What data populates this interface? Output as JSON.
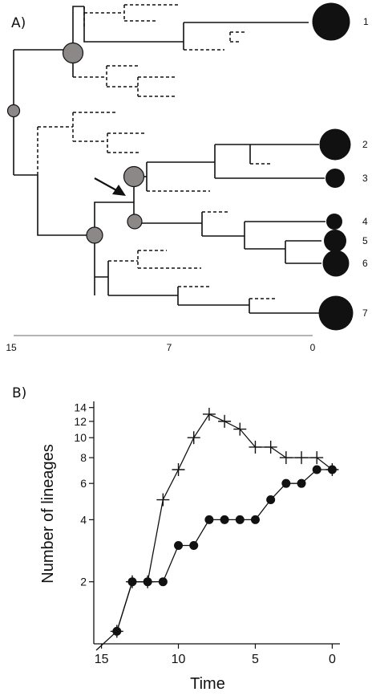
{
  "chart_data": [
    {
      "type": "tree",
      "panel_label": "A)",
      "x_ticks": [
        "15",
        "7",
        "0"
      ],
      "tip_labels": [
        "1",
        "2",
        "3",
        "4",
        "5",
        "6",
        "7"
      ],
      "colors": {
        "node": "#8c8888",
        "tip": "#111111",
        "line": "#111111"
      }
    },
    {
      "type": "line",
      "panel_label": "B)",
      "xlabel": "Time",
      "ylabel": "Number of lineages",
      "x_ticks": [
        15,
        10,
        5,
        0
      ],
      "y_ticks": [
        2,
        4,
        6,
        8,
        10,
        12,
        14
      ],
      "xlim": [
        15.5,
        -0.5
      ],
      "ylim": [
        1,
        15
      ],
      "y_scale": "log",
      "series": [
        {
          "marker": "plus",
          "x": [
            14,
            13,
            12,
            11,
            10,
            9,
            8,
            7,
            6,
            5,
            4,
            3,
            2,
            1,
            0
          ],
          "y": [
            1.15,
            2,
            2,
            5,
            7,
            10,
            13,
            12,
            11,
            9,
            9,
            8,
            8,
            8,
            7
          ]
        },
        {
          "marker": "circle",
          "x": [
            14,
            13,
            12,
            11,
            10,
            9,
            8,
            7,
            6,
            5,
            4,
            3,
            2,
            1,
            0
          ],
          "y": [
            1.15,
            2,
            2,
            2,
            3,
            3,
            4,
            4,
            4,
            4,
            5,
            6,
            6,
            7,
            7
          ]
        }
      ]
    }
  ]
}
